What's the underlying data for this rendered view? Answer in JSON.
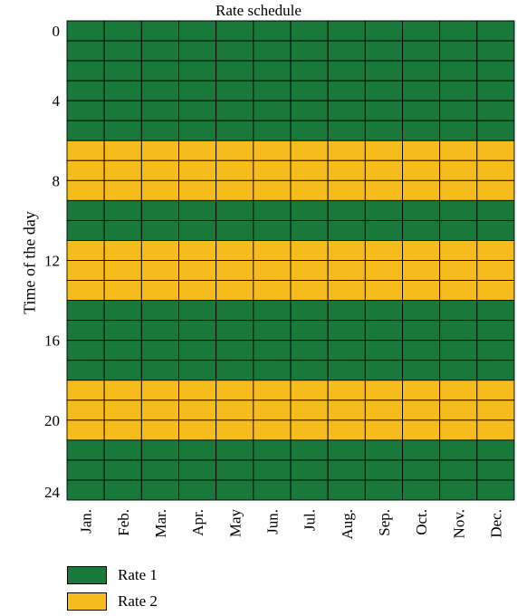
{
  "chart_data": {
    "type": "heatmap",
    "title": "Rate schedule",
    "ylabel": "Time of the day",
    "xlabel": "",
    "months": [
      "Jan.",
      "Feb.",
      "Mar.",
      "Apr.",
      "May",
      "Jun.",
      "Jul.",
      "Aug.",
      "Sep.",
      "Oct.",
      "Nov.",
      "Dec."
    ],
    "y_ticks": [
      0,
      4,
      8,
      12,
      16,
      20,
      24
    ],
    "ylim": [
      0,
      24
    ],
    "hours": [
      0,
      1,
      2,
      3,
      4,
      5,
      6,
      7,
      8,
      9,
      10,
      11,
      12,
      13,
      14,
      15,
      16,
      17,
      18,
      19,
      20,
      21,
      22,
      23
    ],
    "rate_by_hour": [
      1,
      1,
      1,
      1,
      1,
      1,
      2,
      2,
      2,
      1,
      1,
      2,
      2,
      2,
      1,
      1,
      1,
      1,
      2,
      2,
      2,
      1,
      1,
      1
    ],
    "legend": [
      {
        "label": "Rate 1",
        "color": "#18793b"
      },
      {
        "label": "Rate 2",
        "color": "#f5bc1c"
      }
    ],
    "legend_position": "bottom-left"
  }
}
